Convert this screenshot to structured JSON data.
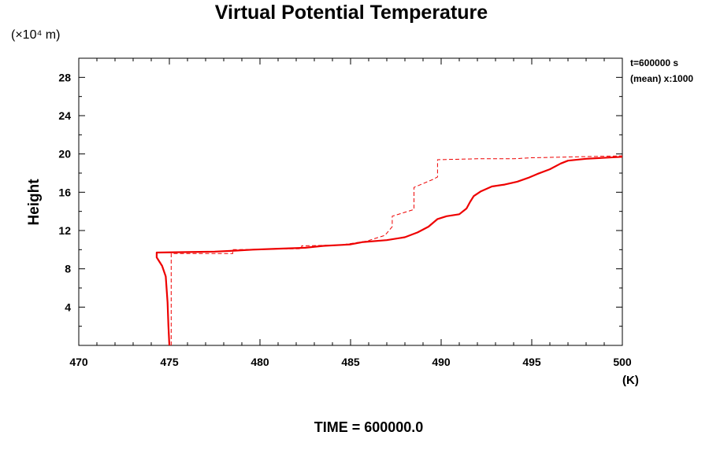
{
  "chart_data": {
    "type": "line",
    "title": "Virtual Potential Temperature",
    "yunits": "(×10⁴ m)",
    "ylabel": "Height",
    "xunits": "(K)",
    "xlim": [
      470,
      500
    ],
    "ylim": [
      0,
      30
    ],
    "x_ticks": [
      470,
      475,
      480,
      485,
      490,
      495,
      500
    ],
    "y_ticks": [
      4,
      8,
      12,
      16,
      20,
      24,
      28
    ],
    "grid": false,
    "annotations": [
      "t=600000 s",
      "(mean) x:1000"
    ],
    "footer": "TIME = 600000.0",
    "series": [
      {
        "style": "solid",
        "color": "#ee0000",
        "points": [
          [
            475.0,
            0.0
          ],
          [
            474.95,
            2.0
          ],
          [
            474.9,
            4.5
          ],
          [
            474.8,
            7.2
          ],
          [
            474.6,
            8.3
          ],
          [
            474.3,
            9.2
          ],
          [
            474.3,
            9.7
          ],
          [
            476.0,
            9.75
          ],
          [
            477.5,
            9.8
          ],
          [
            478.6,
            9.9
          ],
          [
            479.6,
            10.0
          ],
          [
            481.0,
            10.1
          ],
          [
            482.5,
            10.2
          ],
          [
            483.5,
            10.4
          ],
          [
            484.5,
            10.5
          ],
          [
            485.0,
            10.55
          ],
          [
            485.7,
            10.8
          ],
          [
            487.0,
            11.0
          ],
          [
            488.0,
            11.3
          ],
          [
            488.7,
            11.8
          ],
          [
            489.3,
            12.4
          ],
          [
            489.8,
            13.2
          ],
          [
            490.3,
            13.5
          ],
          [
            491.0,
            13.7
          ],
          [
            491.4,
            14.3
          ],
          [
            491.6,
            15.0
          ],
          [
            491.8,
            15.6
          ],
          [
            492.2,
            16.1
          ],
          [
            492.8,
            16.6
          ],
          [
            493.5,
            16.8
          ],
          [
            494.2,
            17.1
          ],
          [
            494.8,
            17.5
          ],
          [
            495.3,
            17.9
          ],
          [
            496.0,
            18.4
          ],
          [
            496.6,
            19.0
          ],
          [
            497.0,
            19.3
          ],
          [
            498.0,
            19.5
          ],
          [
            500.0,
            19.7
          ]
        ]
      },
      {
        "style": "dashed",
        "color": "#ee0000",
        "points": [
          [
            475.1,
            0.0
          ],
          [
            475.1,
            9.6
          ],
          [
            478.5,
            9.6
          ],
          [
            478.5,
            10.0
          ],
          [
            482.3,
            10.1
          ],
          [
            482.3,
            10.4
          ],
          [
            484.5,
            10.5
          ],
          [
            485.9,
            10.9
          ],
          [
            486.9,
            11.5
          ],
          [
            487.3,
            12.4
          ],
          [
            487.3,
            13.5
          ],
          [
            488.5,
            14.2
          ],
          [
            488.5,
            16.5
          ],
          [
            489.5,
            17.3
          ],
          [
            489.8,
            17.6
          ],
          [
            489.8,
            19.4
          ],
          [
            492.0,
            19.5
          ],
          [
            494.0,
            19.5
          ],
          [
            495.0,
            19.6
          ],
          [
            500.0,
            19.8
          ]
        ]
      }
    ]
  }
}
